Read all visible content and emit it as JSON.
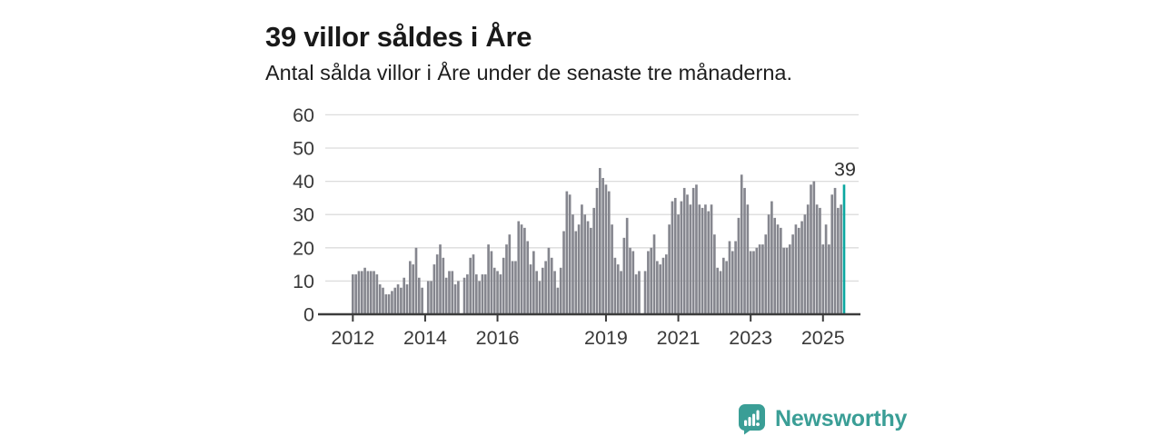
{
  "header": {
    "title": "39 villor såldes i Åre",
    "subtitle": "Antal sålda villor i Åre under de senaste tre månaderna."
  },
  "chart_data": {
    "type": "bar",
    "title": "39 villor såldes i Åre",
    "subtitle": "Antal sålda villor i Åre under de senaste tre månaderna.",
    "x_start_year": 2012,
    "x_start_month": 1,
    "frequency": "monthly",
    "values": [
      12,
      12,
      13,
      13,
      14,
      13,
      13,
      13,
      12,
      9,
      8,
      6,
      6,
      7,
      8,
      9,
      8,
      11,
      9,
      16,
      15,
      20,
      11,
      8,
      0,
      10,
      10,
      15,
      18,
      21,
      17,
      11,
      13,
      13,
      9,
      10,
      0,
      11,
      12,
      17,
      18,
      12,
      10,
      12,
      12,
      21,
      19,
      14,
      13,
      12,
      17,
      21,
      24,
      16,
      16,
      28,
      27,
      26,
      22,
      15,
      19,
      13,
      10,
      14,
      16,
      20,
      17,
      13,
      8,
      14,
      25,
      37,
      36,
      30,
      25,
      27,
      33,
      30,
      28,
      26,
      32,
      38,
      44,
      41,
      39,
      37,
      27,
      17,
      15,
      13,
      23,
      29,
      20,
      19,
      12,
      13,
      0,
      13,
      19,
      20,
      24,
      16,
      15,
      17,
      18,
      27,
      34,
      35,
      30,
      34,
      38,
      36,
      33,
      38,
      39,
      33,
      32,
      33,
      31,
      33,
      24,
      14,
      13,
      17,
      16,
      22,
      19,
      22,
      29,
      42,
      38,
      33,
      19,
      19,
      20,
      21,
      21,
      24,
      30,
      34,
      29,
      27,
      26,
      20,
      20,
      21,
      24,
      27,
      26,
      28,
      30,
      33,
      39,
      40,
      33,
      32,
      21,
      27,
      21,
      36,
      38,
      32,
      33,
      39
    ],
    "last_value_label": "39",
    "highlight_last": true,
    "xticks": [
      2012,
      2014,
      2016,
      2019,
      2021,
      2023,
      2025
    ],
    "yticks": [
      0,
      10,
      20,
      30,
      40,
      50,
      60
    ],
    "ylim": [
      0,
      60
    ],
    "grid": true,
    "legend": "none",
    "colors": {
      "bar": "#85868e",
      "highlight": "#0ba7a0",
      "grid_line": "#dcdcdc",
      "axis_line": "#3c3c3c",
      "tick_label": "#3a3a3a",
      "annotation": "#303030"
    }
  },
  "footer": {
    "brand": "Newsworthy",
    "logo_icon": "bar-chart-speech-bubble-icon",
    "brand_color": "#3a9e96"
  }
}
